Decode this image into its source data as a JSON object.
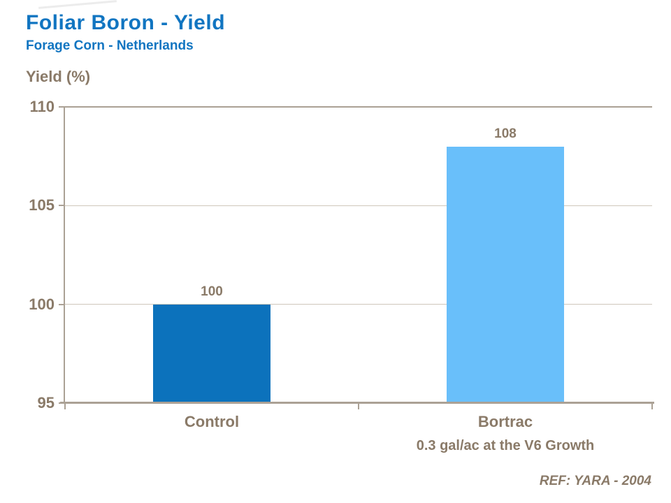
{
  "header": {
    "title": "Foliar Boron - Yield",
    "subtitle": "Forage Corn - Netherlands"
  },
  "footer": {
    "reference": "REF: YARA - 2004"
  },
  "chart_data": {
    "type": "bar",
    "title": "Foliar Boron - Yield",
    "subtitle": "Forage Corn - Netherlands",
    "ylabel": "Yield (%)",
    "xlabel": "",
    "categories": [
      "Control",
      "Bortrac"
    ],
    "category_sublabels": [
      "",
      "0.3 gal/ac at the V6 Growth"
    ],
    "values": [
      100,
      108
    ],
    "data_labels": [
      "100",
      "108"
    ],
    "bar_colors": [
      "#0C72BC",
      "#69BFFA"
    ],
    "ylim": [
      95,
      110
    ],
    "yticks": [
      95,
      100,
      105,
      110
    ],
    "grid": "horizontal",
    "legend_position": "none"
  },
  "colors": {
    "accent_blue": "#1175C1",
    "bar_dark_blue": "#0C72BC",
    "bar_light_blue": "#69BFFA",
    "text_brown": "#8A7A68",
    "axis_line": "#ABA195",
    "gridline": "#CFC7BB",
    "background": "#ffffff"
  }
}
